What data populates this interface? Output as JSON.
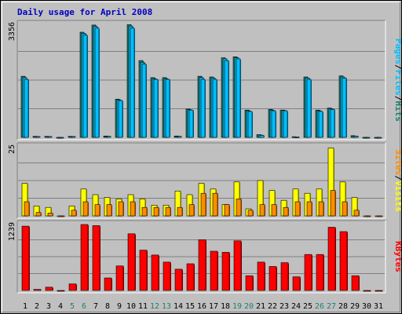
{
  "title": "Daily usage for April 2008",
  "colors": {
    "title": "#0000C0",
    "hits": "#1F7F6F",
    "files": "#00BFFF",
    "pages": "#00BFFF",
    "visits": "#FFFF00",
    "sites": "#FF8C00",
    "kbytes": "#FF0000",
    "weekend_label": "#1F7F6F",
    "weekday_label": "#000000",
    "label_sep": "#000000"
  },
  "chart_data": [
    {
      "type": "bar",
      "name": "pages-files-hits",
      "categories": [
        "1",
        "2",
        "3",
        "4",
        "5",
        "6",
        "7",
        "8",
        "9",
        "10",
        "11",
        "12",
        "13",
        "14",
        "15",
        "16",
        "17",
        "18",
        "19",
        "20",
        "21",
        "22",
        "23",
        "24",
        "25",
        "26",
        "27",
        "28",
        "29",
        "30",
        "31"
      ],
      "ylim": [
        0,
        3356
      ],
      "y_tick_label": "3356",
      "series": [
        {
          "name": "Hits",
          "values": [
            1790,
            30,
            30,
            0,
            30,
            3080,
            3290,
            40,
            1120,
            3300,
            2250,
            1750,
            1750,
            40,
            830,
            1790,
            1770,
            2330,
            2360,
            800,
            80,
            820,
            800,
            20,
            1770,
            800,
            860,
            1800,
            50,
            0,
            0
          ]
        },
        {
          "name": "Files",
          "values": [
            1750,
            25,
            25,
            0,
            25,
            3050,
            3250,
            30,
            1100,
            3260,
            2200,
            1720,
            1720,
            30,
            810,
            1750,
            1740,
            2300,
            2330,
            780,
            70,
            800,
            790,
            15,
            1740,
            780,
            840,
            1770,
            40,
            0,
            0
          ]
        },
        {
          "name": "Pages",
          "values": [
            1700,
            25,
            25,
            0,
            25,
            3000,
            3200,
            30,
            1080,
            3200,
            2150,
            1700,
            1700,
            30,
            800,
            1700,
            1700,
            2250,
            2300,
            760,
            60,
            780,
            780,
            15,
            1700,
            760,
            820,
            1740,
            40,
            0,
            0
          ]
        }
      ],
      "axis_labels": [
        "Pages",
        "Files",
        "Hits"
      ]
    },
    {
      "type": "bar",
      "name": "visits-sites",
      "categories": [
        "1",
        "2",
        "3",
        "4",
        "5",
        "6",
        "7",
        "8",
        "9",
        "10",
        "11",
        "12",
        "13",
        "14",
        "15",
        "16",
        "17",
        "18",
        "19",
        "20",
        "21",
        "22",
        "23",
        "24",
        "25",
        "26",
        "27",
        "28",
        "29",
        "30",
        "31"
      ],
      "ylim": [
        0,
        25
      ],
      "y_tick_label": "25",
      "series": [
        {
          "name": "Visits",
          "values": [
            11.5,
            3.5,
            3.0,
            0,
            3.5,
            9.5,
            7.5,
            6.5,
            6.0,
            7.5,
            6.0,
            3.8,
            3.8,
            8.8,
            7.5,
            11.5,
            9.5,
            4.0,
            12.0,
            2.5,
            12.5,
            9.0,
            5.5,
            9.5,
            8.0,
            9.5,
            24.0,
            12.0,
            6.5,
            0,
            0
          ]
        },
        {
          "name": "Sites",
          "values": [
            5.0,
            1.2,
            1.0,
            0,
            2.0,
            5.0,
            4.0,
            4.0,
            5.0,
            5.0,
            3.0,
            3.0,
            3.0,
            3.0,
            4.0,
            8.0,
            8.0,
            4.0,
            6.0,
            2.0,
            4.0,
            4.0,
            3.0,
            5.0,
            5.0,
            5.0,
            9.0,
            5.0,
            2.0,
            0,
            0
          ]
        }
      ],
      "axis_labels": [
        "Sites",
        "Visits"
      ]
    },
    {
      "type": "bar",
      "name": "kbytes",
      "categories": [
        "1",
        "2",
        "3",
        "4",
        "5",
        "6",
        "7",
        "8",
        "9",
        "10",
        "11",
        "12",
        "13",
        "14",
        "15",
        "16",
        "17",
        "18",
        "19",
        "20",
        "21",
        "22",
        "23",
        "24",
        "25",
        "26",
        "27",
        "28",
        "29",
        "30",
        "31"
      ],
      "ylim": [
        0,
        1239
      ],
      "y_tick_label": "1239",
      "series": [
        {
          "name": "KBytes",
          "values": [
            1180,
            20,
            60,
            0,
            120,
            1210,
            1190,
            230,
            450,
            1040,
            740,
            650,
            520,
            390,
            490,
            930,
            720,
            700,
            910,
            270,
            520,
            440,
            510,
            250,
            660,
            660,
            1160,
            1080,
            270,
            0,
            0
          ]
        }
      ],
      "axis_labels": [
        "KBytes"
      ]
    }
  ],
  "x_axis": {
    "labels": [
      "1",
      "2",
      "3",
      "4",
      "5",
      "6",
      "7",
      "8",
      "9",
      "10",
      "11",
      "12",
      "13",
      "14",
      "15",
      "16",
      "17",
      "18",
      "19",
      "20",
      "21",
      "22",
      "23",
      "24",
      "25",
      "26",
      "27",
      "28",
      "29",
      "30",
      "31"
    ],
    "weekend_days": [
      "5",
      "6",
      "12",
      "13",
      "19",
      "20",
      "26",
      "27"
    ]
  }
}
